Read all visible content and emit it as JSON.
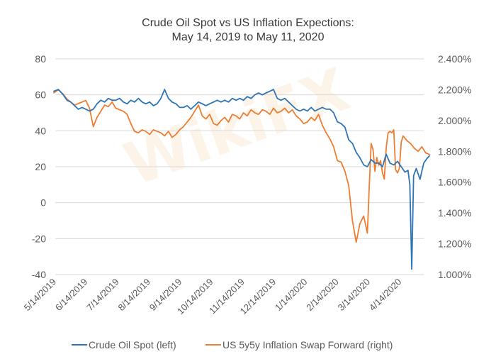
{
  "chart_data": {
    "type": "line",
    "title": "Crude Oil Spot vs US Inflation Expections:",
    "subtitle": "May 14, 2019 to May 11, 2020",
    "x_start": "5/14/2019",
    "x_end": "5/11/2020",
    "xlabel": "",
    "ylabel_left": "",
    "ylabel_right": "",
    "ylim_left": [
      -40,
      80
    ],
    "ylim_right": [
      1.0,
      2.4
    ],
    "grid": true,
    "legend_position": "bottom",
    "left_ticks": [
      "80",
      "60",
      "40",
      "20",
      "0",
      "-20",
      "-40"
    ],
    "right_ticks": [
      "2.400%",
      "2.200%",
      "2.000%",
      "1.800%",
      "1.600%",
      "1.400%",
      "1.200%",
      "1.000%"
    ],
    "x_tick_labels": [
      "5/14/2019",
      "6/14/2019",
      "7/14/2019",
      "8/14/2019",
      "9/14/2019",
      "10/14/2019",
      "11/14/2019",
      "12/14/2019",
      "1/14/2020",
      "2/14/2020",
      "3/14/2020",
      "4/14/2020"
    ],
    "series": [
      {
        "name": "Crude Oil Spot (left)",
        "axis": "left",
        "color": "#2e75b6",
        "x_frac": [
          0.0,
          0.012,
          0.025,
          0.035,
          0.045,
          0.055,
          0.065,
          0.075,
          0.085,
          0.095,
          0.105,
          0.115,
          0.125,
          0.135,
          0.145,
          0.155,
          0.165,
          0.175,
          0.185,
          0.195,
          0.205,
          0.215,
          0.225,
          0.235,
          0.245,
          0.255,
          0.265,
          0.275,
          0.285,
          0.295,
          0.305,
          0.315,
          0.325,
          0.335,
          0.345,
          0.355,
          0.365,
          0.375,
          0.385,
          0.395,
          0.405,
          0.415,
          0.425,
          0.435,
          0.445,
          0.455,
          0.465,
          0.475,
          0.485,
          0.495,
          0.505,
          0.515,
          0.525,
          0.535,
          0.545,
          0.555,
          0.565,
          0.575,
          0.585,
          0.595,
          0.605,
          0.615,
          0.625,
          0.635,
          0.645,
          0.655,
          0.665,
          0.675,
          0.685,
          0.695,
          0.705,
          0.715,
          0.725,
          0.735,
          0.745,
          0.755,
          0.765,
          0.775,
          0.785,
          0.795,
          0.805,
          0.815,
          0.825,
          0.835,
          0.845,
          0.855,
          0.865,
          0.875,
          0.885,
          0.895,
          0.905,
          0.915,
          0.925,
          0.935,
          0.943,
          0.948,
          0.953,
          0.958,
          0.965,
          0.975,
          0.985,
          0.995,
          1.0
        ],
        "values": [
          62,
          63,
          60,
          57,
          56,
          54,
          52,
          53,
          52,
          51,
          52,
          55,
          57,
          56,
          58,
          57,
          57,
          58,
          56,
          55,
          57,
          56,
          58,
          56,
          55,
          56,
          54,
          55,
          58,
          63,
          58,
          56,
          55,
          53,
          53,
          54,
          52,
          54,
          56,
          55,
          54,
          55,
          56,
          57,
          56,
          57,
          56,
          58,
          57,
          58,
          57,
          59,
          58,
          60,
          61,
          60,
          61,
          62,
          63,
          58,
          57,
          58,
          56,
          54,
          52,
          51,
          52,
          51,
          53,
          51,
          52,
          53,
          52,
          52,
          50,
          45,
          44,
          42,
          35,
          33,
          28,
          25,
          21,
          20,
          24,
          22,
          22,
          20,
          27,
          22,
          21,
          23,
          20,
          17,
          18,
          10,
          -37,
          15,
          19,
          13,
          22,
          25,
          26
        ]
      },
      {
        "name": "US 5y5y Inflation Swap Forward (right)",
        "axis": "right",
        "color": "#ed7d31",
        "x_frac": [
          0.0,
          0.012,
          0.025,
          0.035,
          0.045,
          0.055,
          0.065,
          0.075,
          0.085,
          0.095,
          0.105,
          0.115,
          0.125,
          0.135,
          0.145,
          0.155,
          0.165,
          0.175,
          0.185,
          0.195,
          0.205,
          0.215,
          0.225,
          0.235,
          0.245,
          0.255,
          0.265,
          0.275,
          0.285,
          0.295,
          0.305,
          0.315,
          0.325,
          0.335,
          0.345,
          0.355,
          0.365,
          0.375,
          0.385,
          0.395,
          0.405,
          0.415,
          0.425,
          0.435,
          0.445,
          0.455,
          0.465,
          0.475,
          0.485,
          0.495,
          0.505,
          0.515,
          0.525,
          0.535,
          0.545,
          0.555,
          0.565,
          0.575,
          0.585,
          0.595,
          0.605,
          0.615,
          0.625,
          0.635,
          0.645,
          0.655,
          0.665,
          0.675,
          0.685,
          0.695,
          0.705,
          0.715,
          0.725,
          0.735,
          0.745,
          0.755,
          0.765,
          0.775,
          0.785,
          0.795,
          0.805,
          0.815,
          0.825,
          0.835,
          0.84,
          0.845,
          0.85,
          0.855,
          0.86,
          0.865,
          0.87,
          0.875,
          0.88,
          0.885,
          0.89,
          0.895,
          0.9,
          0.905,
          0.91,
          0.915,
          0.92,
          0.925,
          0.93,
          0.94,
          0.95,
          0.96,
          0.97,
          0.98,
          0.99,
          1.0
        ],
        "values": [
          2.18,
          2.2,
          2.17,
          2.14,
          2.12,
          2.1,
          2.11,
          2.12,
          2.13,
          2.08,
          1.96,
          2.02,
          2.06,
          2.1,
          2.09,
          2.12,
          2.08,
          2.07,
          2.06,
          2.04,
          1.98,
          1.93,
          1.92,
          1.94,
          1.93,
          1.91,
          1.94,
          1.93,
          1.92,
          1.9,
          1.93,
          1.89,
          1.91,
          1.94,
          1.96,
          1.99,
          2.02,
          2.06,
          2.1,
          2.03,
          2.01,
          2.04,
          1.98,
          1.97,
          2.0,
          2.02,
          1.99,
          2.04,
          2.03,
          2.01,
          2.05,
          2.03,
          2.07,
          2.05,
          2.04,
          2.07,
          2.06,
          2.04,
          2.08,
          2.05,
          2.06,
          2.08,
          2.05,
          2.07,
          2.03,
          2.01,
          1.98,
          1.99,
          2.02,
          2.0,
          2.04,
          1.97,
          1.92,
          1.88,
          1.83,
          1.74,
          1.73,
          1.67,
          1.58,
          1.35,
          1.21,
          1.33,
          1.38,
          1.27,
          1.58,
          1.85,
          1.81,
          1.67,
          1.76,
          1.71,
          1.74,
          1.66,
          1.62,
          1.82,
          1.92,
          1.93,
          1.92,
          1.94,
          1.68,
          1.66,
          1.69,
          1.86,
          1.9,
          1.87,
          1.85,
          1.82,
          1.8,
          1.83,
          1.79,
          1.78
        ]
      }
    ]
  },
  "legend": {
    "items": [
      {
        "label": "Crude Oil Spot (left)",
        "color": "#2e75b6"
      },
      {
        "label": "US 5y5y Inflation Swap Forward (right)",
        "color": "#ed7d31"
      }
    ]
  },
  "watermark": {
    "text": "WikiFX"
  }
}
